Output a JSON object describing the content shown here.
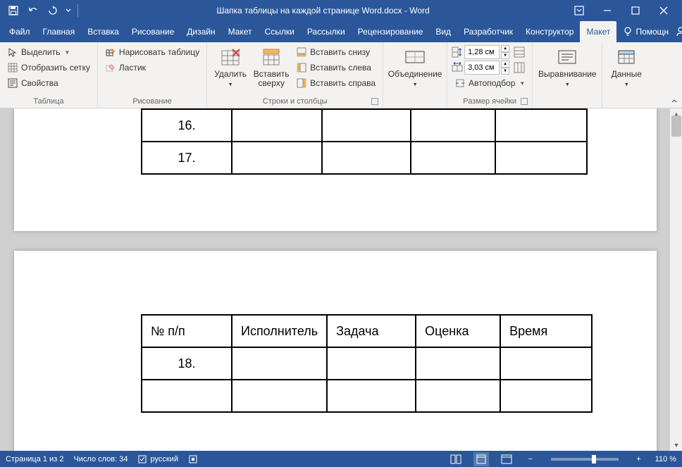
{
  "titlebar": {
    "doc_title": "Шапка таблицы на каждой странице Word.docx  -  Word"
  },
  "tabs": {
    "file": "Файл",
    "home": "Главная",
    "insert": "Вставка",
    "draw": "Рисование",
    "design": "Дизайн",
    "layout": "Макет",
    "references": "Ссылки",
    "mailings": "Рассылки",
    "review": "Рецензирование",
    "view": "Вид",
    "developer": "Разработчик",
    "t_design": "Конструктор",
    "t_layout": "Макет",
    "help": "Помощн"
  },
  "ribbon": {
    "table_group": "Таблица",
    "select": "Выделить",
    "gridlines": "Отобразить сетку",
    "properties": "Свойства",
    "draw_group": "Рисование",
    "draw_table": "Нарисовать таблицу",
    "eraser": "Ластик",
    "rc_group": "Строки и столбцы",
    "delete": "Удалить",
    "insert_above": "Вставить сверху",
    "insert_below": "Вставить снизу",
    "insert_left": "Вставить слева",
    "insert_right": "Вставить справа",
    "merge_group": "Объединение",
    "merge": "Объединение",
    "cellsize_group": "Размер ячейки",
    "height": "1,28 см",
    "width": "3,03 см",
    "autofit": "Автоподбор",
    "align_group": "Выравнивание",
    "align": "Выравнивание",
    "data_group": "Данные",
    "data": "Данные"
  },
  "document": {
    "page1": {
      "rows": [
        {
          "num": "16."
        },
        {
          "num": "17."
        }
      ]
    },
    "page2": {
      "headers": [
        "№ п/п",
        "Исполнитель",
        "Задача",
        "Оценка",
        "Время"
      ],
      "rows": [
        {
          "num": "18."
        }
      ]
    }
  },
  "statusbar": {
    "page_info": "Страница 1 из 2",
    "word_count": "Число слов: 34",
    "language": "русский",
    "zoom": "110 %"
  },
  "colors": {
    "brand": "#2b579a",
    "ribbon_bg": "#f3f2f1",
    "doc_bg": "#d0d0d0"
  }
}
